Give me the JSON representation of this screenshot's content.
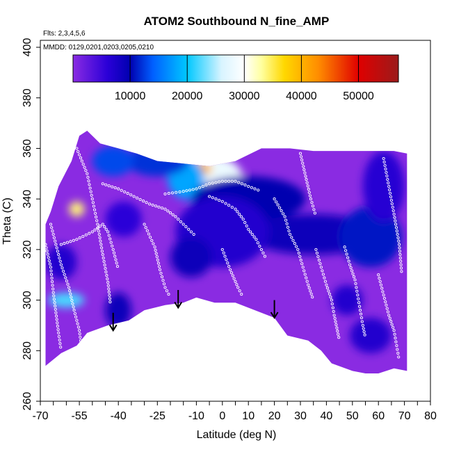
{
  "chart_data": {
    "type": "heatmap",
    "title": "ATOM2 Southbound N_fine_AMP",
    "flights_note": "Flts: 2,3,4,5,6",
    "dates_note": "MMDD: 0129,0201,0203,0205,0210",
    "xlabel": "Latitude (deg N)",
    "ylabel": "Theta (C)",
    "xlim": [
      -70,
      80
    ],
    "ylim": [
      260,
      400
    ],
    "x_ticks": [
      -70,
      -55,
      -40,
      -25,
      -10,
      0,
      10,
      20,
      30,
      40,
      50,
      60,
      70,
      80
    ],
    "x_ticks_major": [
      -70,
      -55,
      -40,
      -25,
      -10,
      0,
      10,
      20,
      30,
      40,
      50,
      60,
      70,
      80
    ],
    "x_minor_step": 5,
    "y_ticks": [
      260,
      280,
      300,
      320,
      340,
      360,
      380,
      400
    ],
    "colorbar": {
      "range": [
        0,
        57000
      ],
      "ticks": [
        10000,
        20000,
        30000,
        40000,
        50000
      ],
      "stops": [
        {
          "value": 0,
          "color": "#8a2be2"
        },
        {
          "value": 6000,
          "color": "#2b00d8"
        },
        {
          "value": 10000,
          "color": "#0000b0"
        },
        {
          "value": 14000,
          "color": "#0060ff"
        },
        {
          "value": 20000,
          "color": "#00c8ff"
        },
        {
          "value": 26000,
          "color": "#d8f4ff"
        },
        {
          "value": 30000,
          "color": "#ffffff"
        },
        {
          "value": 33000,
          "color": "#ffffa0"
        },
        {
          "value": 37000,
          "color": "#ffd800"
        },
        {
          "value": 43000,
          "color": "#ff8c00"
        },
        {
          "value": 50000,
          "color": "#e00000"
        },
        {
          "value": 57000,
          "color": "#9b1b1b"
        }
      ]
    },
    "outline": [
      [
        -68,
        274
      ],
      [
        -62,
        279
      ],
      [
        -56,
        282
      ],
      [
        -52,
        287
      ],
      [
        -44,
        290
      ],
      [
        -36,
        292
      ],
      [
        -30,
        296
      ],
      [
        -22,
        298
      ],
      [
        -15,
        299
      ],
      [
        -10,
        301
      ],
      [
        -3,
        299
      ],
      [
        5,
        299
      ],
      [
        10,
        297
      ],
      [
        20,
        293
      ],
      [
        25,
        286
      ],
      [
        33,
        284
      ],
      [
        38,
        280
      ],
      [
        42,
        275
      ],
      [
        50,
        272
      ],
      [
        55,
        271
      ],
      [
        60,
        271
      ],
      [
        63,
        272
      ],
      [
        66,
        273
      ],
      [
        71,
        272
      ],
      [
        71,
        358
      ],
      [
        66,
        359
      ],
      [
        58,
        359
      ],
      [
        50,
        359
      ],
      [
        45,
        359
      ],
      [
        35,
        359
      ],
      [
        26,
        360
      ],
      [
        15,
        360
      ],
      [
        5,
        355
      ],
      [
        -5,
        353
      ],
      [
        -15,
        354
      ],
      [
        -25,
        355
      ],
      [
        -33,
        358
      ],
      [
        -40,
        360
      ],
      [
        -47,
        362
      ],
      [
        -52,
        367
      ],
      [
        -55,
        365
      ],
      [
        -58,
        355
      ],
      [
        -63,
        345
      ],
      [
        -66,
        335
      ],
      [
        -68,
        330
      ]
    ],
    "hotspots": [
      {
        "lat": -4,
        "theta": 348,
        "rlat": 12,
        "rtheta": 9,
        "value": 28000
      },
      {
        "lat": -10,
        "theta": 352,
        "rlat": 6,
        "rtheta": 3,
        "value": 40000
      },
      {
        "lat": -14,
        "theta": 348,
        "rlat": 7,
        "rtheta": 8,
        "value": 18000
      },
      {
        "lat": -25,
        "theta": 355,
        "rlat": 12,
        "rtheta": 6,
        "value": 12000
      },
      {
        "lat": -42,
        "theta": 355,
        "rlat": 8,
        "rtheta": 6,
        "value": 13000
      },
      {
        "lat": 10,
        "theta": 340,
        "rlat": 22,
        "rtheta": 9,
        "value": 10000
      },
      {
        "lat": 35,
        "theta": 326,
        "rlat": 25,
        "rtheta": 8,
        "value": 9000
      },
      {
        "lat": 57,
        "theta": 325,
        "rlat": 12,
        "rtheta": 12,
        "value": 11000
      },
      {
        "lat": 0,
        "theta": 327,
        "rlat": 18,
        "rtheta": 14,
        "value": 7000
      },
      {
        "lat": -12,
        "theta": 317,
        "rlat": 8,
        "rtheta": 8,
        "value": 9000
      },
      {
        "lat": -60,
        "theta": 300,
        "rlat": 7,
        "rtheta": 3,
        "value": 22000
      },
      {
        "lat": -56,
        "theta": 336,
        "rlat": 3,
        "rtheta": 3,
        "value": 34000
      },
      {
        "lat": -40,
        "theta": 296,
        "rlat": 5,
        "rtheta": 7,
        "value": 9000
      },
      {
        "lat": -62,
        "theta": 315,
        "rlat": 6,
        "rtheta": 7,
        "value": 7000
      },
      {
        "lat": 48,
        "theta": 300,
        "rlat": 6,
        "rtheta": 6,
        "value": 7000
      },
      {
        "lat": 57,
        "theta": 286,
        "rlat": 8,
        "rtheta": 7,
        "value": 7000
      },
      {
        "lat": -38,
        "theta": 332,
        "rlat": 7,
        "rtheta": 7,
        "value": 6000
      },
      {
        "lat": 62,
        "theta": 345,
        "rlat": 8,
        "rtheta": 14,
        "value": 6500
      }
    ],
    "arrows": [
      {
        "lat": -42,
        "theta_top": 295,
        "theta_bottom": 288
      },
      {
        "lat": -17,
        "theta_top": 304,
        "theta_bottom": 297
      },
      {
        "lat": 20,
        "theta_top": 300,
        "theta_bottom": 293
      }
    ],
    "sample_tracks": [
      {
        "points": [
          [
            -66,
            330
          ],
          [
            -64,
            322
          ],
          [
            -62,
            314
          ],
          [
            -59,
            305
          ],
          [
            -57,
            296
          ],
          [
            -55,
            288
          ],
          [
            -54,
            280
          ]
        ]
      },
      {
        "points": [
          [
            -62,
            322
          ],
          [
            -56,
            324
          ],
          [
            -50,
            327
          ],
          [
            -46,
            330
          ],
          [
            -44,
            327
          ],
          [
            -42,
            320
          ],
          [
            -40,
            312
          ]
        ]
      },
      {
        "points": [
          [
            -46,
            346
          ],
          [
            -40,
            344
          ],
          [
            -34,
            341
          ],
          [
            -28,
            338
          ],
          [
            -22,
            336
          ],
          [
            -18,
            333
          ],
          [
            -14,
            329
          ],
          [
            -10,
            325
          ]
        ]
      },
      {
        "points": [
          [
            -22,
            342
          ],
          [
            -15,
            343
          ],
          [
            -10,
            344
          ],
          [
            -5,
            346
          ],
          [
            0,
            347
          ],
          [
            5,
            347
          ],
          [
            10,
            345
          ],
          [
            15,
            343
          ]
        ]
      },
      {
        "points": [
          [
            -5,
            341
          ],
          [
            0,
            339
          ],
          [
            5,
            336
          ],
          [
            8,
            332
          ],
          [
            10,
            328
          ],
          [
            13,
            324
          ],
          [
            15,
            320
          ],
          [
            17,
            316
          ]
        ]
      },
      {
        "points": [
          [
            20,
            340
          ],
          [
            24,
            333
          ],
          [
            26,
            326
          ],
          [
            29,
            320
          ],
          [
            31,
            313
          ],
          [
            33,
            306
          ],
          [
            35,
            300
          ]
        ]
      },
      {
        "points": [
          [
            36,
            320
          ],
          [
            38,
            313
          ],
          [
            40,
            306
          ],
          [
            42,
            300
          ],
          [
            43,
            294
          ],
          [
            44,
            289
          ],
          [
            45,
            284
          ]
        ]
      },
      {
        "points": [
          [
            47,
            321
          ],
          [
            49,
            314
          ],
          [
            51,
            308
          ],
          [
            52,
            302
          ],
          [
            53,
            296
          ],
          [
            54,
            290
          ],
          [
            55,
            285
          ]
        ]
      },
      {
        "points": [
          [
            60,
            310
          ],
          [
            62,
            302
          ],
          [
            64,
            294
          ],
          [
            66,
            288
          ],
          [
            67,
            282
          ],
          [
            68,
            276
          ]
        ]
      },
      {
        "points": [
          [
            62,
            356
          ],
          [
            64,
            345
          ],
          [
            66,
            334
          ],
          [
            68,
            322
          ],
          [
            69,
            310
          ]
        ]
      },
      {
        "points": [
          [
            -56,
            360
          ],
          [
            -52,
            350
          ],
          [
            -50,
            340
          ],
          [
            -48,
            330
          ],
          [
            -46,
            318
          ],
          [
            -44,
            307
          ],
          [
            -43,
            298
          ]
        ]
      },
      {
        "points": [
          [
            -30,
            330
          ],
          [
            -26,
            321
          ],
          [
            -24,
            312
          ],
          [
            -22,
            305
          ],
          [
            -20,
            301
          ]
        ]
      },
      {
        "points": [
          [
            0,
            320
          ],
          [
            3,
            312
          ],
          [
            6,
            305
          ],
          [
            8,
            301
          ]
        ]
      },
      {
        "points": [
          [
            -68,
            322
          ],
          [
            -66,
            313
          ],
          [
            -65,
            303
          ],
          [
            -64,
            295
          ],
          [
            -63,
            287
          ],
          [
            -62,
            280
          ]
        ]
      },
      {
        "points": [
          [
            30,
            358
          ],
          [
            32,
            349
          ],
          [
            34,
            340
          ],
          [
            36,
            333
          ]
        ]
      }
    ]
  }
}
